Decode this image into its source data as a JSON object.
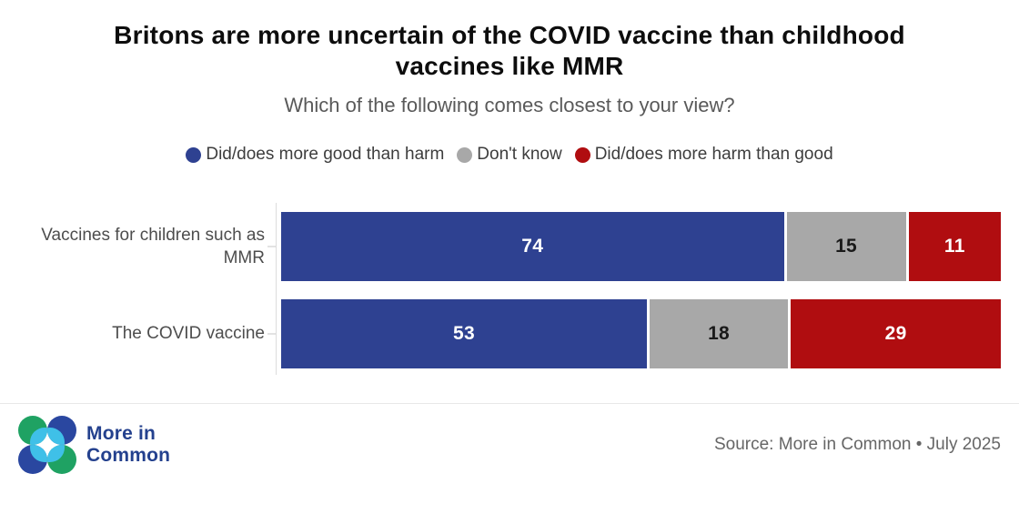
{
  "header": {
    "title": "Britons are more uncertain of the COVID vaccine than childhood vaccines like MMR",
    "subtitle": "Which of the following comes closest to your view?"
  },
  "chart_data": {
    "type": "bar",
    "orientation": "horizontal",
    "stacked": true,
    "unit": "percent",
    "xlim": [
      0,
      100
    ],
    "grid": false,
    "legend_position": "top",
    "value_labels": "inside-center",
    "categories": [
      "Vaccines for children such as MMR",
      "The COVID vaccine"
    ],
    "series": [
      {
        "name": "Did/does more good than harm",
        "color": "#2e4191",
        "label_color": "#ffffff",
        "values": [
          74,
          53
        ]
      },
      {
        "name": "Don't know",
        "color": "#a8a8a8",
        "label_color": "#1a1a1a",
        "values": [
          15,
          18
        ]
      },
      {
        "name": "Did/does more harm than good",
        "color": "#b00d10",
        "label_color": "#ffffff",
        "values": [
          11,
          29
        ]
      }
    ]
  },
  "footer": {
    "brand_line1": "More in",
    "brand_line2": "Common",
    "source": "Source: More in Common • July 2025",
    "logo_colors": {
      "green": "#1fa263",
      "blue": "#2a47a0",
      "cyan": "#3fc0e8"
    }
  }
}
